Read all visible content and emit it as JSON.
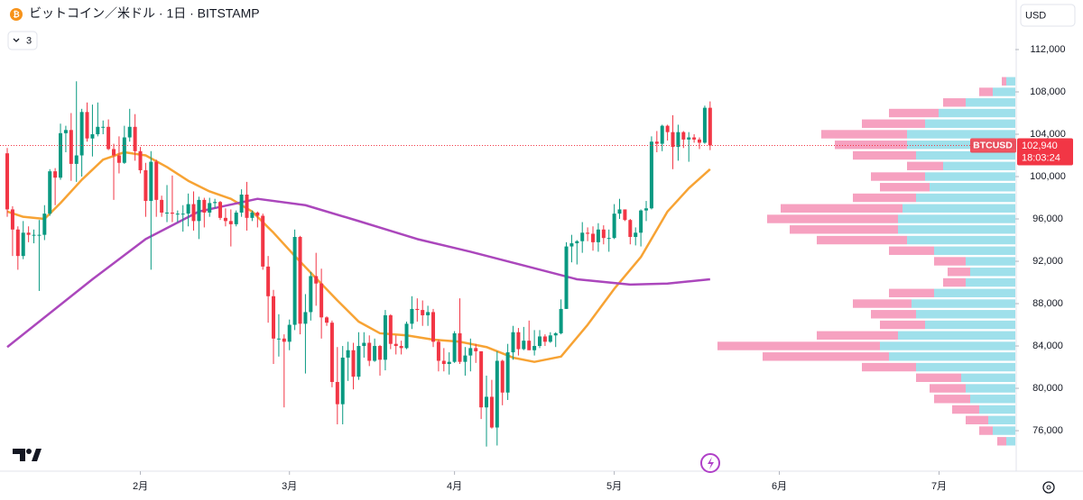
{
  "chart_data": {
    "type": "candlestick",
    "title": "ビットコイン／米ドル · 1日 · BITSTAMP",
    "hidden_indicators": 3,
    "currency": "USD",
    "symbol": "BTCUSD",
    "last_price": {
      "value": 102940,
      "label": "102,940"
    },
    "countdown": "18:03:24",
    "up_color": "#089981",
    "down_color": "#f23645",
    "grid": false,
    "ylim": [
      72260,
      116680
    ],
    "yticks": [
      {
        "value": 76000,
        "label": "76,000"
      },
      {
        "value": 80000,
        "label": "80,000"
      },
      {
        "value": 84000,
        "label": "84,000"
      },
      {
        "value": 88000,
        "label": "88,000"
      },
      {
        "value": 92000,
        "label": "92,000"
      },
      {
        "value": 96000,
        "label": "96,000"
      },
      {
        "value": 100000,
        "label": "100,000"
      },
      {
        "value": 104000,
        "label": "104,000"
      },
      {
        "value": 108000,
        "label": "108,000"
      },
      {
        "value": 112000,
        "label": "112,000"
      }
    ],
    "xlim": [
      -1.36,
      189.32
    ],
    "xticks": [
      {
        "value": 25,
        "label": "2月"
      },
      {
        "value": 53,
        "label": "3月"
      },
      {
        "value": 84,
        "label": "4月"
      },
      {
        "value": 114,
        "label": "5月"
      },
      {
        "value": 145,
        "label": "6月"
      },
      {
        "value": 175,
        "label": "7月"
      }
    ],
    "ohlc": [
      [
        102200,
        102700,
        96200,
        96900
      ],
      [
        96900,
        97200,
        92500,
        95000
      ],
      [
        95000,
        95300,
        91200,
        92500
      ],
      [
        92500,
        95800,
        92200,
        94700
      ],
      [
        94700,
        95300,
        93800,
        94500
      ],
      [
        94500,
        95000,
        93700,
        94500
      ],
      [
        94500,
        95900,
        89200,
        94500
      ],
      [
        94500,
        97300,
        94000,
        96500
      ],
      [
        96500,
        100700,
        96300,
        100500
      ],
      [
        100500,
        100800,
        97300,
        99900
      ],
      [
        99900,
        105000,
        99700,
        104100
      ],
      [
        104100,
        104800,
        102300,
        104400
      ],
      [
        104400,
        106000,
        99600,
        101200
      ],
      [
        101200,
        109000,
        99500,
        102000
      ],
      [
        102000,
        106400,
        100000,
        106100
      ],
      [
        106100,
        107000,
        103300,
        103600
      ],
      [
        103600,
        106800,
        101900,
        104000
      ],
      [
        104000,
        107000,
        103800,
        104700
      ],
      [
        104700,
        105300,
        104000,
        104700
      ],
      [
        104700,
        105400,
        102500,
        102600
      ],
      [
        102600,
        103100,
        97800,
        102000
      ],
      [
        102000,
        103800,
        100300,
        101300
      ],
      [
        101300,
        104800,
        101200,
        103700
      ],
      [
        103700,
        106400,
        103300,
        104700
      ],
      [
        104700,
        105900,
        101500,
        102400
      ],
      [
        102400,
        102800,
        100300,
        100600
      ],
      [
        100600,
        101300,
        96200,
        97700
      ],
      [
        97700,
        102400,
        91200,
        101400
      ],
      [
        101400,
        101600,
        96200,
        97800
      ],
      [
        97800,
        98200,
        96200,
        96600
      ],
      [
        96600,
        99200,
        95700,
        96600
      ],
      [
        96600,
        100100,
        95700,
        96500
      ],
      [
        96500,
        96800,
        95700,
        96500
      ],
      [
        96500,
        97300,
        94800,
        96500
      ],
      [
        96500,
        98400,
        95300,
        97400
      ],
      [
        97400,
        98600,
        94900,
        95800
      ],
      [
        95800,
        98100,
        94100,
        97800
      ],
      [
        97800,
        98000,
        95200,
        96600
      ],
      [
        96600,
        98000,
        96200,
        97500
      ],
      [
        97500,
        97900,
        97000,
        97600
      ],
      [
        97600,
        97700,
        95900,
        96100
      ],
      [
        96100,
        97000,
        95300,
        95800
      ],
      [
        95800,
        96900,
        93400,
        95500
      ],
      [
        95500,
        96800,
        95300,
        96600
      ],
      [
        96600,
        98800,
        96200,
        98300
      ],
      [
        98300,
        99500,
        94900,
        96100
      ],
      [
        96100,
        96800,
        95800,
        96600
      ],
      [
        96600,
        96700,
        95200,
        96300
      ],
      [
        96300,
        96500,
        91200,
        91500
      ],
      [
        91500,
        92500,
        86200,
        88700
      ],
      [
        88700,
        89300,
        82300,
        84700
      ],
      [
        84700,
        87000,
        83000,
        84700
      ],
      [
        84700,
        85100,
        78200,
        84400
      ],
      [
        84400,
        86500,
        83600,
        86000
      ],
      [
        86000,
        95000,
        85500,
        94300
      ],
      [
        94300,
        94400,
        85100,
        86100
      ],
      [
        86100,
        88900,
        81400,
        87200
      ],
      [
        87200,
        91000,
        86400,
        90600
      ],
      [
        90600,
        92800,
        87800,
        89900
      ],
      [
        89900,
        91300,
        84700,
        86700
      ],
      [
        86700,
        86800,
        85900,
        86200
      ],
      [
        86200,
        86400,
        80100,
        80600
      ],
      [
        80600,
        83900,
        76600,
        78500
      ],
      [
        78500,
        84000,
        76600,
        82900
      ],
      [
        82900,
        84400,
        80700,
        83600
      ],
      [
        83600,
        84300,
        79900,
        81100
      ],
      [
        81100,
        85300,
        80800,
        84000
      ],
      [
        84000,
        85300,
        82900,
        84300
      ],
      [
        84300,
        85000,
        82100,
        82600
      ],
      [
        82600,
        84700,
        82500,
        84000
      ],
      [
        84000,
        84100,
        81200,
        82700
      ],
      [
        82700,
        87400,
        81700,
        86900
      ],
      [
        86900,
        87000,
        83700,
        84200
      ],
      [
        84200,
        85000,
        83200,
        84000
      ],
      [
        84000,
        84500,
        83200,
        83800
      ],
      [
        83800,
        86300,
        83700,
        86100
      ],
      [
        86100,
        88700,
        85600,
        87500
      ],
      [
        87500,
        88500,
        86300,
        87400
      ],
      [
        87400,
        88300,
        85900,
        86900
      ],
      [
        86900,
        87800,
        85900,
        87200
      ],
      [
        87200,
        87500,
        83900,
        84400
      ],
      [
        84400,
        84600,
        81600,
        82600
      ],
      [
        82600,
        83800,
        81600,
        82300
      ],
      [
        82300,
        83400,
        81300,
        82500
      ],
      [
        82500,
        85400,
        82400,
        85200
      ],
      [
        85200,
        88500,
        82300,
        82500
      ],
      [
        82500,
        83900,
        81200,
        83100
      ],
      [
        83100,
        84700,
        81600,
        83800
      ],
      [
        83800,
        84200,
        82400,
        83500
      ],
      [
        83500,
        83500,
        77100,
        78200
      ],
      [
        78200,
        81200,
        74500,
        79200
      ],
      [
        79200,
        80800,
        76200,
        76300
      ],
      [
        76300,
        83500,
        74600,
        82600
      ],
      [
        82600,
        82700,
        78400,
        79600
      ],
      [
        79600,
        84200,
        78900,
        83400
      ],
      [
        83400,
        85900,
        82700,
        85300
      ],
      [
        85300,
        85700,
        83100,
        83700
      ],
      [
        83700,
        85800,
        83600,
        84500
      ],
      [
        84500,
        86400,
        83600,
        83600
      ],
      [
        83600,
        85500,
        83100,
        84000
      ],
      [
        84000,
        85500,
        83800,
        84900
      ],
      [
        84900,
        85100,
        84000,
        84400
      ],
      [
        84400,
        85300,
        84300,
        85000
      ],
      [
        85000,
        85300,
        83900,
        85200
      ],
      [
        85200,
        88400,
        85100,
        87500
      ],
      [
        87500,
        93800,
        87500,
        93400
      ],
      [
        93400,
        94500,
        91900,
        93700
      ],
      [
        93700,
        94000,
        91700,
        93900
      ],
      [
        93900,
        95700,
        92800,
        94700
      ],
      [
        94700,
        95200,
        93900,
        94600
      ],
      [
        94600,
        95300,
        93000,
        93800
      ],
      [
        93800,
        95600,
        92900,
        95000
      ],
      [
        95000,
        95400,
        93600,
        94200
      ],
      [
        94200,
        95000,
        92900,
        94200
      ],
      [
        94200,
        97400,
        94100,
        96500
      ],
      [
        96500,
        97900,
        96000,
        96900
      ],
      [
        96900,
        96900,
        95800,
        95900
      ],
      [
        95900,
        96000,
        93600,
        94300
      ],
      [
        94300,
        95200,
        93500,
        94700
      ],
      [
        94700,
        96900,
        93400,
        96800
      ],
      [
        96800,
        97700,
        95800,
        97000
      ],
      [
        97000,
        103800,
        96900,
        103300
      ],
      [
        103300,
        104300,
        102300,
        103100
      ],
      [
        103100,
        104900,
        102400,
        104800
      ],
      [
        104800,
        104900,
        103400,
        104200
      ],
      [
        104200,
        105800,
        100700,
        102800
      ],
      [
        102800,
        104900,
        101500,
        104200
      ],
      [
        104200,
        104300,
        102700,
        103500
      ],
      [
        103500,
        104200,
        101400,
        103700
      ],
      [
        103700,
        104000,
        103200,
        103500
      ],
      [
        103500,
        103700,
        102600,
        103200
      ],
      [
        103200,
        106700,
        103100,
        106500
      ],
      [
        106500,
        107100,
        102500,
        102940
      ]
    ],
    "series": [
      {
        "color": "#f7a334",
        "x": [
          0,
          3,
          7,
          10,
          14,
          18,
          22,
          26,
          30,
          34,
          38,
          42,
          46,
          50,
          54,
          58,
          62,
          66,
          70,
          75,
          80,
          85,
          90,
          95,
          99,
          104,
          109,
          114,
          119,
          124,
          128,
          132
        ],
        "values": [
          96700,
          96200,
          96000,
          97500,
          99700,
          101600,
          102300,
          102000,
          100900,
          99600,
          98600,
          97900,
          96700,
          94700,
          92500,
          90400,
          88300,
          86300,
          85200,
          85000,
          84600,
          84400,
          83900,
          82900,
          82500,
          83000,
          86000,
          89400,
          92400,
          96700,
          98900,
          100700
        ]
      },
      {
        "color": "#ab47bc",
        "x": [
          0,
          16,
          26,
          36,
          47,
          56,
          66,
          77,
          87,
          97,
          107,
          117,
          124,
          132
        ],
        "values": [
          83900,
          90300,
          94100,
          96700,
          97900,
          97300,
          95800,
          94100,
          92900,
          91600,
          90300,
          89800,
          89900,
          90300
        ]
      }
    ],
    "volume_profile": {
      "up_color": "#8edbe8",
      "down_color": "#f590b5",
      "xlim": [
        0,
        340
      ],
      "prices": [
        75000,
        76000,
        77000,
        78000,
        79000,
        80000,
        81000,
        82000,
        83000,
        84000,
        85000,
        86000,
        87000,
        88000,
        89000,
        90000,
        91000,
        92000,
        93000,
        94000,
        95000,
        96000,
        97000,
        98000,
        99000,
        100000,
        101000,
        102000,
        103000,
        104000,
        105000,
        106000,
        107000,
        108000,
        109000
      ],
      "up": [
        10,
        25,
        30,
        40,
        50,
        55,
        60,
        110,
        140,
        150,
        130,
        100,
        110,
        115,
        90,
        55,
        50,
        55,
        90,
        120,
        130,
        130,
        125,
        110,
        95,
        100,
        80,
        110,
        120,
        120,
        100,
        85,
        55,
        25,
        10
      ],
      "down": [
        10,
        15,
        25,
        30,
        40,
        40,
        50,
        60,
        140,
        180,
        90,
        50,
        50,
        65,
        50,
        25,
        25,
        35,
        50,
        100,
        120,
        145,
        135,
        70,
        55,
        60,
        40,
        70,
        80,
        95,
        70,
        55,
        25,
        15,
        5
      ]
    }
  }
}
